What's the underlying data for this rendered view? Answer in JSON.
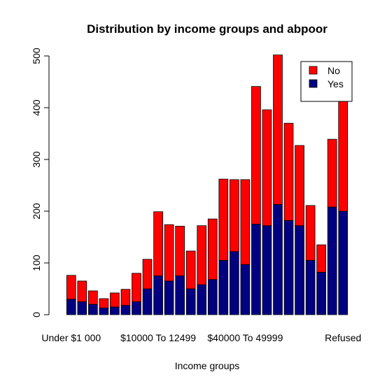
{
  "chart_data": {
    "type": "bar",
    "stacked": true,
    "title": "Distribution by income groups and abpoor",
    "xlabel": "Income groups",
    "ylabel": "",
    "ylim": [
      0,
      500
    ],
    "yticks": [
      0,
      100,
      200,
      300,
      400,
      500
    ],
    "x_tick_labels": [
      "Under $1 000",
      "$10000 To 12499",
      "$40000 To 49999",
      "Refused"
    ],
    "x_tick_label_category_index": [
      0,
      8,
      16,
      25
    ],
    "categories": [
      "Under $1 000",
      "",
      "",
      "",
      "",
      "",
      "",
      "",
      "$10000 To 12499",
      "",
      "",
      "",
      "",
      "",
      "",
      "",
      "$40000 To 49999",
      "",
      "",
      "",
      "",
      "",
      "",
      "",
      "",
      "Refused"
    ],
    "series": [
      {
        "name": "Yes",
        "color": "#000080",
        "values": [
          30,
          25,
          20,
          13,
          15,
          18,
          25,
          50,
          75,
          65,
          75,
          50,
          58,
          68,
          105,
          122,
          97,
          175,
          172,
          213,
          182,
          172,
          105,
          82,
          208,
          200
        ]
      },
      {
        "name": "No",
        "color": "#ff0000",
        "values": [
          46,
          40,
          26,
          18,
          27,
          31,
          55,
          57,
          124,
          109,
          96,
          73,
          114,
          117,
          157,
          139,
          164,
          266,
          224,
          289,
          188,
          155,
          106,
          53,
          131,
          235
        ]
      }
    ],
    "legend": {
      "position": "top-right",
      "entries": [
        {
          "label": "No",
          "color": "#ff0000"
        },
        {
          "label": "Yes",
          "color": "#000080"
        }
      ]
    },
    "grid": false
  }
}
